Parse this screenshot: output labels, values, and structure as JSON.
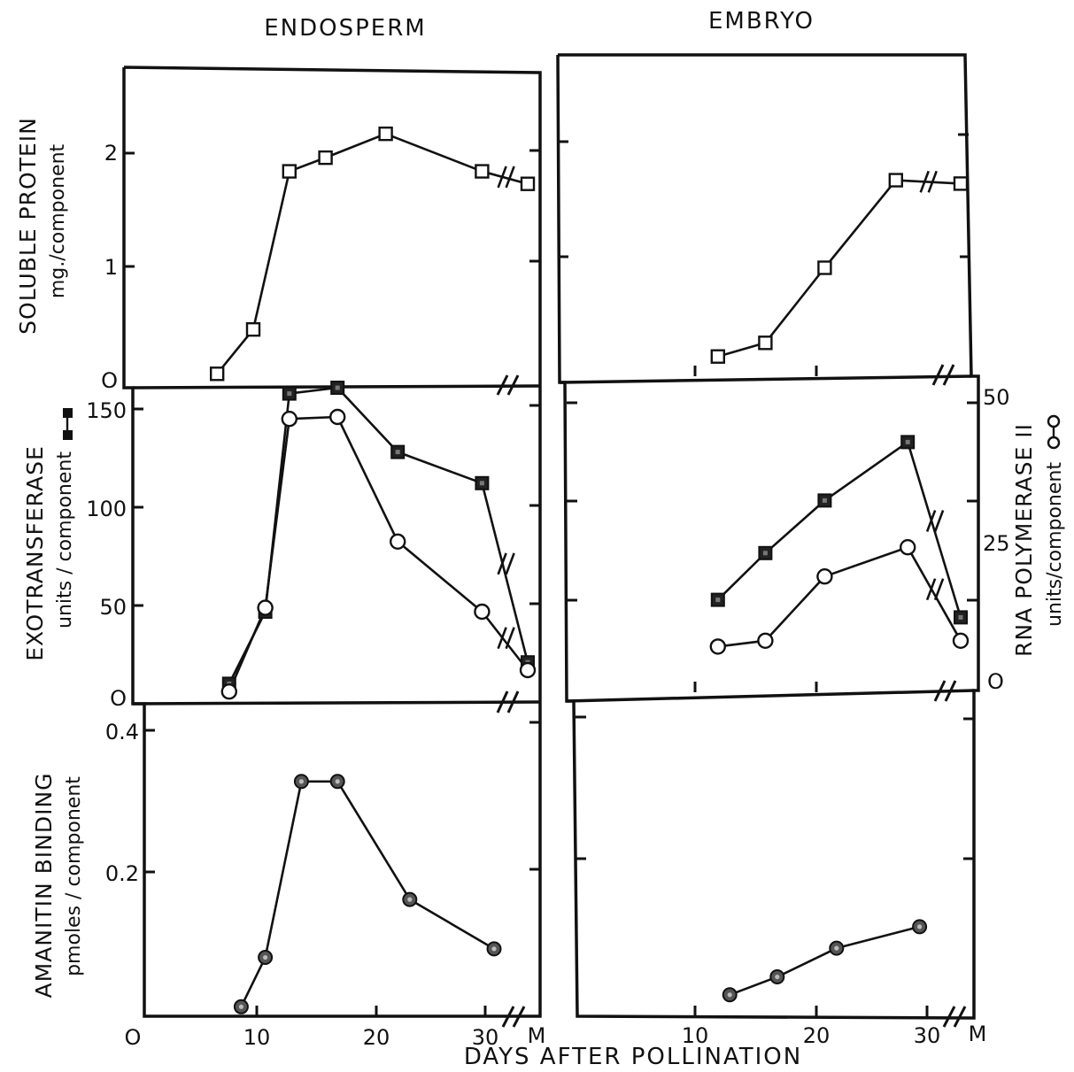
{
  "figure": {
    "column_titles": [
      "ENDOSPERM",
      "EMBRYO"
    ],
    "xlabel": "DAYS AFTER POLLINATION",
    "x_ticks_endosperm": [
      "O",
      "10",
      "20",
      "30",
      "M"
    ],
    "x_ticks_embryo": [
      "10",
      "20",
      "30",
      "M"
    ],
    "row_labels": [
      {
        "main": "SOLUBLE PROTEIN",
        "sub": "mg./component"
      },
      {
        "main": "EXOTRANSFERASE",
        "sub": "units / component"
      },
      {
        "main": "AMANITIN BINDING",
        "sub": "pmoles / component"
      }
    ],
    "right_label": {
      "main": "RNA POLYMERASE II",
      "sub": "units/component"
    },
    "y_ticks": {
      "protein": [
        "O",
        "1",
        "2"
      ],
      "exo": [
        "O",
        "50",
        "100",
        "150"
      ],
      "amanitin": [
        "0.2",
        "0.4"
      ],
      "rna": [
        "O",
        "25",
        "50"
      ]
    }
  },
  "chart_data": [
    {
      "type": "line",
      "panel": "endosperm-soluble-protein",
      "x_unit": "days after pollination",
      "ylim": [
        0,
        2.5
      ],
      "series": [
        {
          "marker": "open-square",
          "points": [
            [
              7,
              0.06
            ],
            [
              10,
              0.45
            ],
            [
              13,
              1.84
            ],
            [
              16,
              1.96
            ],
            [
              21,
              2.17
            ],
            [
              29,
              1.84
            ],
            [
              "M",
              1.73
            ]
          ]
        }
      ]
    },
    {
      "type": "line",
      "panel": "embryo-soluble-protein",
      "x_unit": "days after pollination",
      "ylim": [
        0,
        2.5
      ],
      "series": [
        {
          "marker": "open-square",
          "points": [
            [
              13,
              0.15
            ],
            [
              17,
              0.27
            ],
            [
              22,
              0.93
            ],
            [
              28,
              1.7
            ],
            [
              "M",
              1.67
            ]
          ]
        }
      ]
    },
    {
      "type": "line",
      "panel": "endosperm-exotransferase-rna-polymerase",
      "x_unit": "days after pollination",
      "ylim": [
        0,
        150
      ],
      "series": [
        {
          "marker": "filled-square",
          "points": [
            [
              8,
              8
            ],
            [
              11,
              45
            ],
            [
              13,
              157
            ],
            [
              17,
              160
            ],
            [
              22,
              127
            ],
            [
              29,
              111
            ],
            [
              "M",
              19
            ]
          ]
        },
        {
          "marker": "open-circle",
          "points": [
            [
              8,
              4
            ],
            [
              11,
              47
            ],
            [
              13,
              144
            ],
            [
              17,
              145
            ],
            [
              22,
              81
            ],
            [
              29,
              45
            ],
            [
              "M",
              15
            ]
          ]
        }
      ]
    },
    {
      "type": "line",
      "panel": "embryo-exotransferase-rna-polymerase",
      "x_unit": "days after pollination",
      "ylim": [
        0,
        50
      ],
      "series": [
        {
          "marker": "filled-square",
          "points": [
            [
              13,
              14
            ],
            [
              17,
              22
            ],
            [
              22,
              31
            ],
            [
              29,
              41
            ],
            [
              "M",
              11
            ]
          ]
        },
        {
          "marker": "open-circle",
          "points": [
            [
              13,
              6
            ],
            [
              17,
              7
            ],
            [
              22,
              18
            ],
            [
              29,
              23
            ],
            [
              "M",
              7
            ]
          ]
        }
      ]
    },
    {
      "type": "line",
      "panel": "endosperm-amanitin-binding",
      "x_unit": "days after pollination",
      "ylim": [
        0,
        0.4
      ],
      "series": [
        {
          "marker": "dotted-circle",
          "points": [
            [
              9,
              0.012
            ],
            [
              11,
              0.081
            ],
            [
              14,
              0.327
            ],
            [
              17,
              0.327
            ],
            [
              23,
              0.162
            ],
            [
              30,
              0.093
            ]
          ]
        }
      ]
    },
    {
      "type": "line",
      "panel": "embryo-amanitin-binding",
      "x_unit": "days after pollination",
      "ylim": [
        0,
        0.4
      ],
      "series": [
        {
          "marker": "dotted-circle",
          "points": [
            [
              14,
              0.02
            ],
            [
              18,
              0.045
            ],
            [
              23,
              0.085
            ],
            [
              30,
              0.115
            ]
          ]
        }
      ]
    }
  ]
}
